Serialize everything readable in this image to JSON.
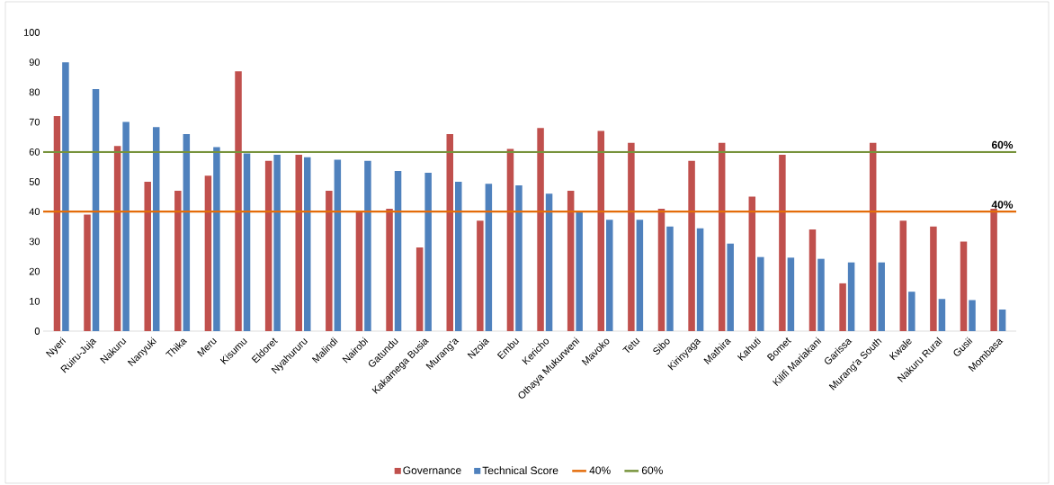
{
  "chart_data": {
    "type": "bar",
    "categories": [
      "Nyeri",
      "Ruiru-Juja",
      "Nakuru",
      "Nanyuki",
      "Thika",
      "Meru",
      "Kisumu",
      "Eldoret",
      "Nyahururu",
      "Malindi",
      "Nairobi",
      "Gatundu",
      "Kakamega Busia",
      "Murang'a",
      "Nzoia",
      "Embu",
      "Kericho",
      "Othaya Mukurweni",
      "Mavoko",
      "Tetu",
      "Sibo",
      "Kirinyaga",
      "Mathira",
      "Kahuti",
      "Bomet",
      "Kilifi Mariakani",
      "Garissa",
      "Murang'a South",
      "Kwale",
      "Nakuru Rural",
      "Gusii",
      "Mombasa"
    ],
    "series": [
      {
        "name": "Governance",
        "color": "#c0504d",
        "values": [
          72,
          39,
          62,
          50,
          47,
          52,
          87,
          57,
          59,
          47,
          40,
          41,
          28,
          66,
          37,
          61,
          68,
          47,
          67,
          63,
          41,
          57,
          63,
          45,
          59,
          34,
          16,
          63,
          37,
          35,
          30,
          41
        ]
      },
      {
        "name": "Technical Score",
        "color": "#4f81bd",
        "values": [
          90,
          81,
          70,
          68.3,
          66,
          61.6,
          59.5,
          59,
          58.2,
          57.4,
          57,
          53.6,
          53,
          50,
          49.3,
          48.8,
          46,
          40,
          37.3,
          37.3,
          35,
          34.4,
          29.3,
          24.8,
          24.6,
          24.2,
          23,
          23,
          13.2,
          10.8,
          10.4,
          7.2
        ]
      }
    ],
    "ref_lines": [
      {
        "axis": "y",
        "value": 40,
        "label": "40%",
        "color": "#e46c0a"
      },
      {
        "axis": "y",
        "value": 60,
        "label": "60%",
        "color": "#77933c"
      }
    ],
    "ylim": [
      0,
      100
    ],
    "yticks": [
      0,
      10,
      20,
      30,
      40,
      50,
      60,
      70,
      80,
      90,
      100
    ],
    "legend": "bottom"
  }
}
